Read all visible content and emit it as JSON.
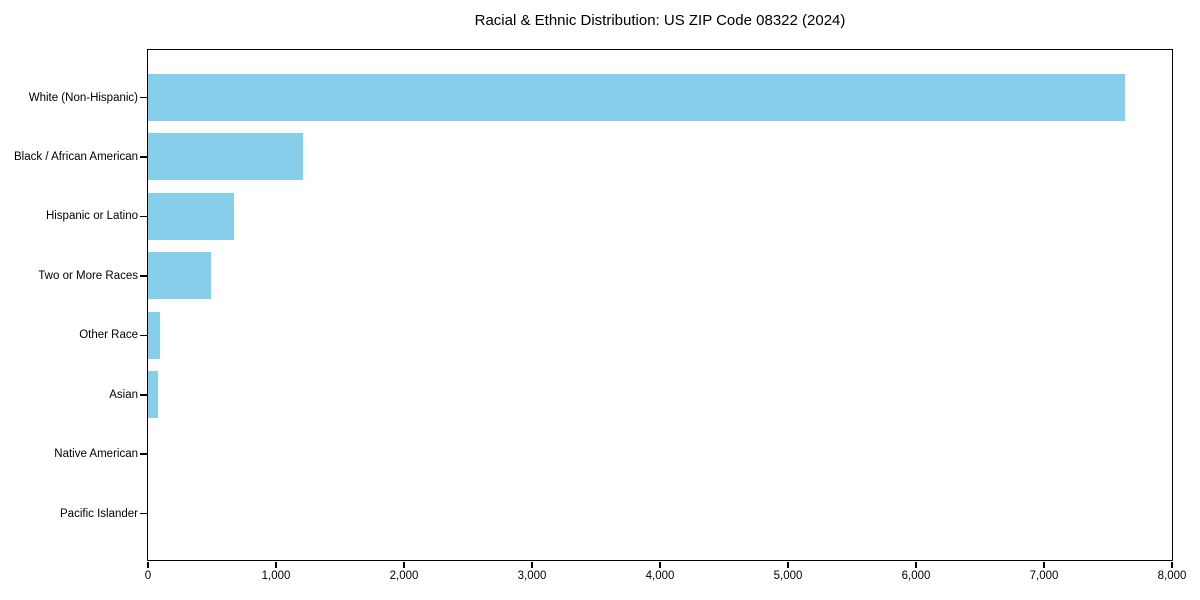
{
  "chart_data": {
    "type": "bar",
    "orientation": "horizontal",
    "title": "Racial & Ethnic Distribution: US ZIP Code 08322 (2024)",
    "categories": [
      "White (Non-Hispanic)",
      "Black / African American",
      "Hispanic or Latino",
      "Two or More Races",
      "Other Race",
      "Asian",
      "Native American",
      "Pacific Islander"
    ],
    "values": [
      7635,
      1210,
      672,
      495,
      96,
      80,
      0,
      0
    ],
    "xlabel": "",
    "ylabel": "",
    "xlim": [
      0,
      8000
    ],
    "x_ticks": [
      0,
      1000,
      2000,
      3000,
      4000,
      5000,
      6000,
      7000,
      8000
    ],
    "x_tick_labels": [
      "0",
      "1,000",
      "2,000",
      "3,000",
      "4,000",
      "5,000",
      "6,000",
      "7,000",
      "8,000"
    ],
    "bar_color": "#87CEEB",
    "axis_color": "#000000",
    "text_color": "#000000",
    "background_color": "#ffffff",
    "grid": false,
    "legend_position": "none"
  }
}
